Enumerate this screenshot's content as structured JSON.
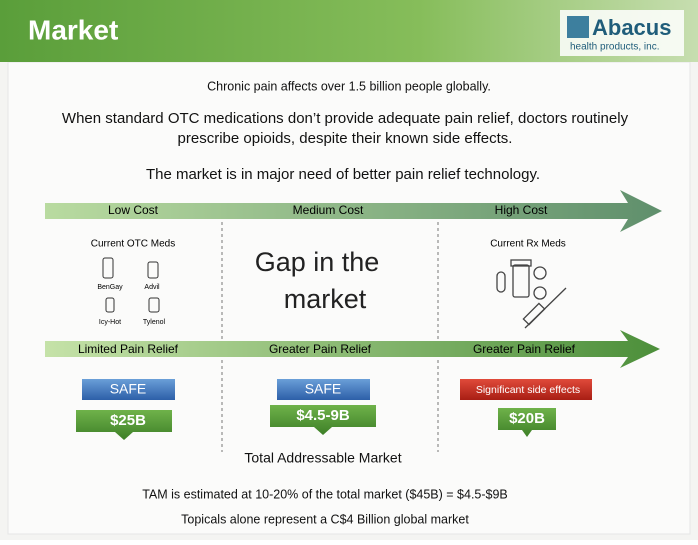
{
  "header": {
    "title": "Market",
    "logo_name": "Abacus",
    "logo_sub": "health products, inc."
  },
  "intro": {
    "line1": "Chronic pain affects over 1.5 billion people globally.",
    "line2": [
      "When standard OTC medications don’t provide adequate pain relief, doctors routinely",
      "prescribe opioids, despite their known side effects."
    ],
    "line3": "The market is in major need of better pain relief technology."
  },
  "cost_axis": [
    "Low Cost",
    "Medium Cost",
    "High Cost"
  ],
  "columns": [
    {
      "heading": "Current OTC Meds",
      "products": [
        "BenGay",
        "Advil",
        "Icy-Hot",
        "Tylenol"
      ],
      "relief": "Limited Pain Relief",
      "safety": "SAFE",
      "size": "$25B"
    },
    {
      "heading": [
        "Gap in the",
        "market"
      ],
      "relief": "Greater Pain Relief",
      "safety": "SAFE",
      "size": "$4.5-9B"
    },
    {
      "heading": "Current Rx Meds",
      "relief": "Greater Pain Relief",
      "safety": "Significant side effects",
      "size": "$20B"
    }
  ],
  "footer": {
    "tam_label": "Total Addressable Market",
    "tam_note": "TAM is estimated at 10-20% of the total market ($45B) = $4.5-$9B",
    "topicals": "Topicals alone represent a C$4 Billion global market"
  }
}
